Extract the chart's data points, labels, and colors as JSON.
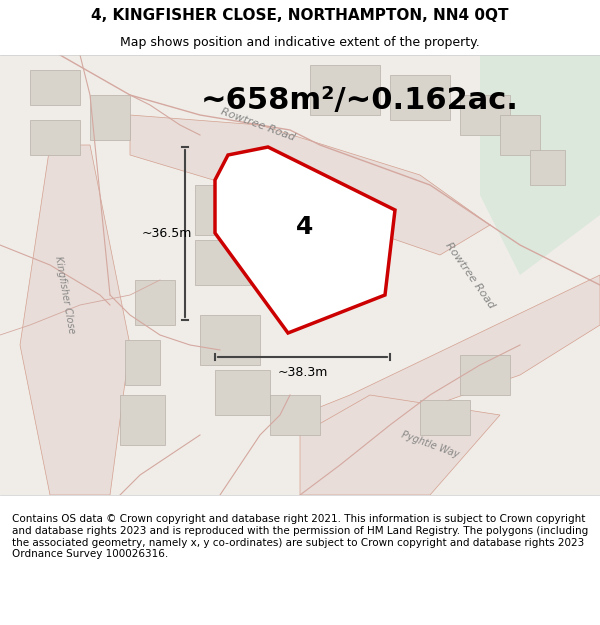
{
  "title": "4, KINGFISHER CLOSE, NORTHAMPTON, NN4 0QT",
  "subtitle": "Map shows position and indicative extent of the property.",
  "area_text": "~658m²/~0.162ac.",
  "label_4": "4",
  "dim_h": "~36.5m",
  "dim_w": "~38.3m",
  "copyright_text": "Contains OS data © Crown copyright and database right 2021. This information is subject to Crown copyright and database rights 2023 and is reproduced with the permission of HM Land Registry. The polygons (including the associated geometry, namely x, y co-ordinates) are subject to Crown copyright and database rights 2023 Ordnance Survey 100026316.",
  "bg_color": "#f0ede8",
  "map_bg": "#f0ede8",
  "road_color": "#e8d0c8",
  "road_line_color": "#d4a090",
  "building_color": "#d8d4cc",
  "green_area_color": "#d8e8d8",
  "plot_outline_color": "#cc0000",
  "plot_fill_color": "#ffffff",
  "dim_line_color": "#444444",
  "title_fontsize": 11,
  "subtitle_fontsize": 9,
  "area_fontsize": 22,
  "label_fontsize": 18,
  "copyright_fontsize": 7.5,
  "road_label_color": "#888888"
}
